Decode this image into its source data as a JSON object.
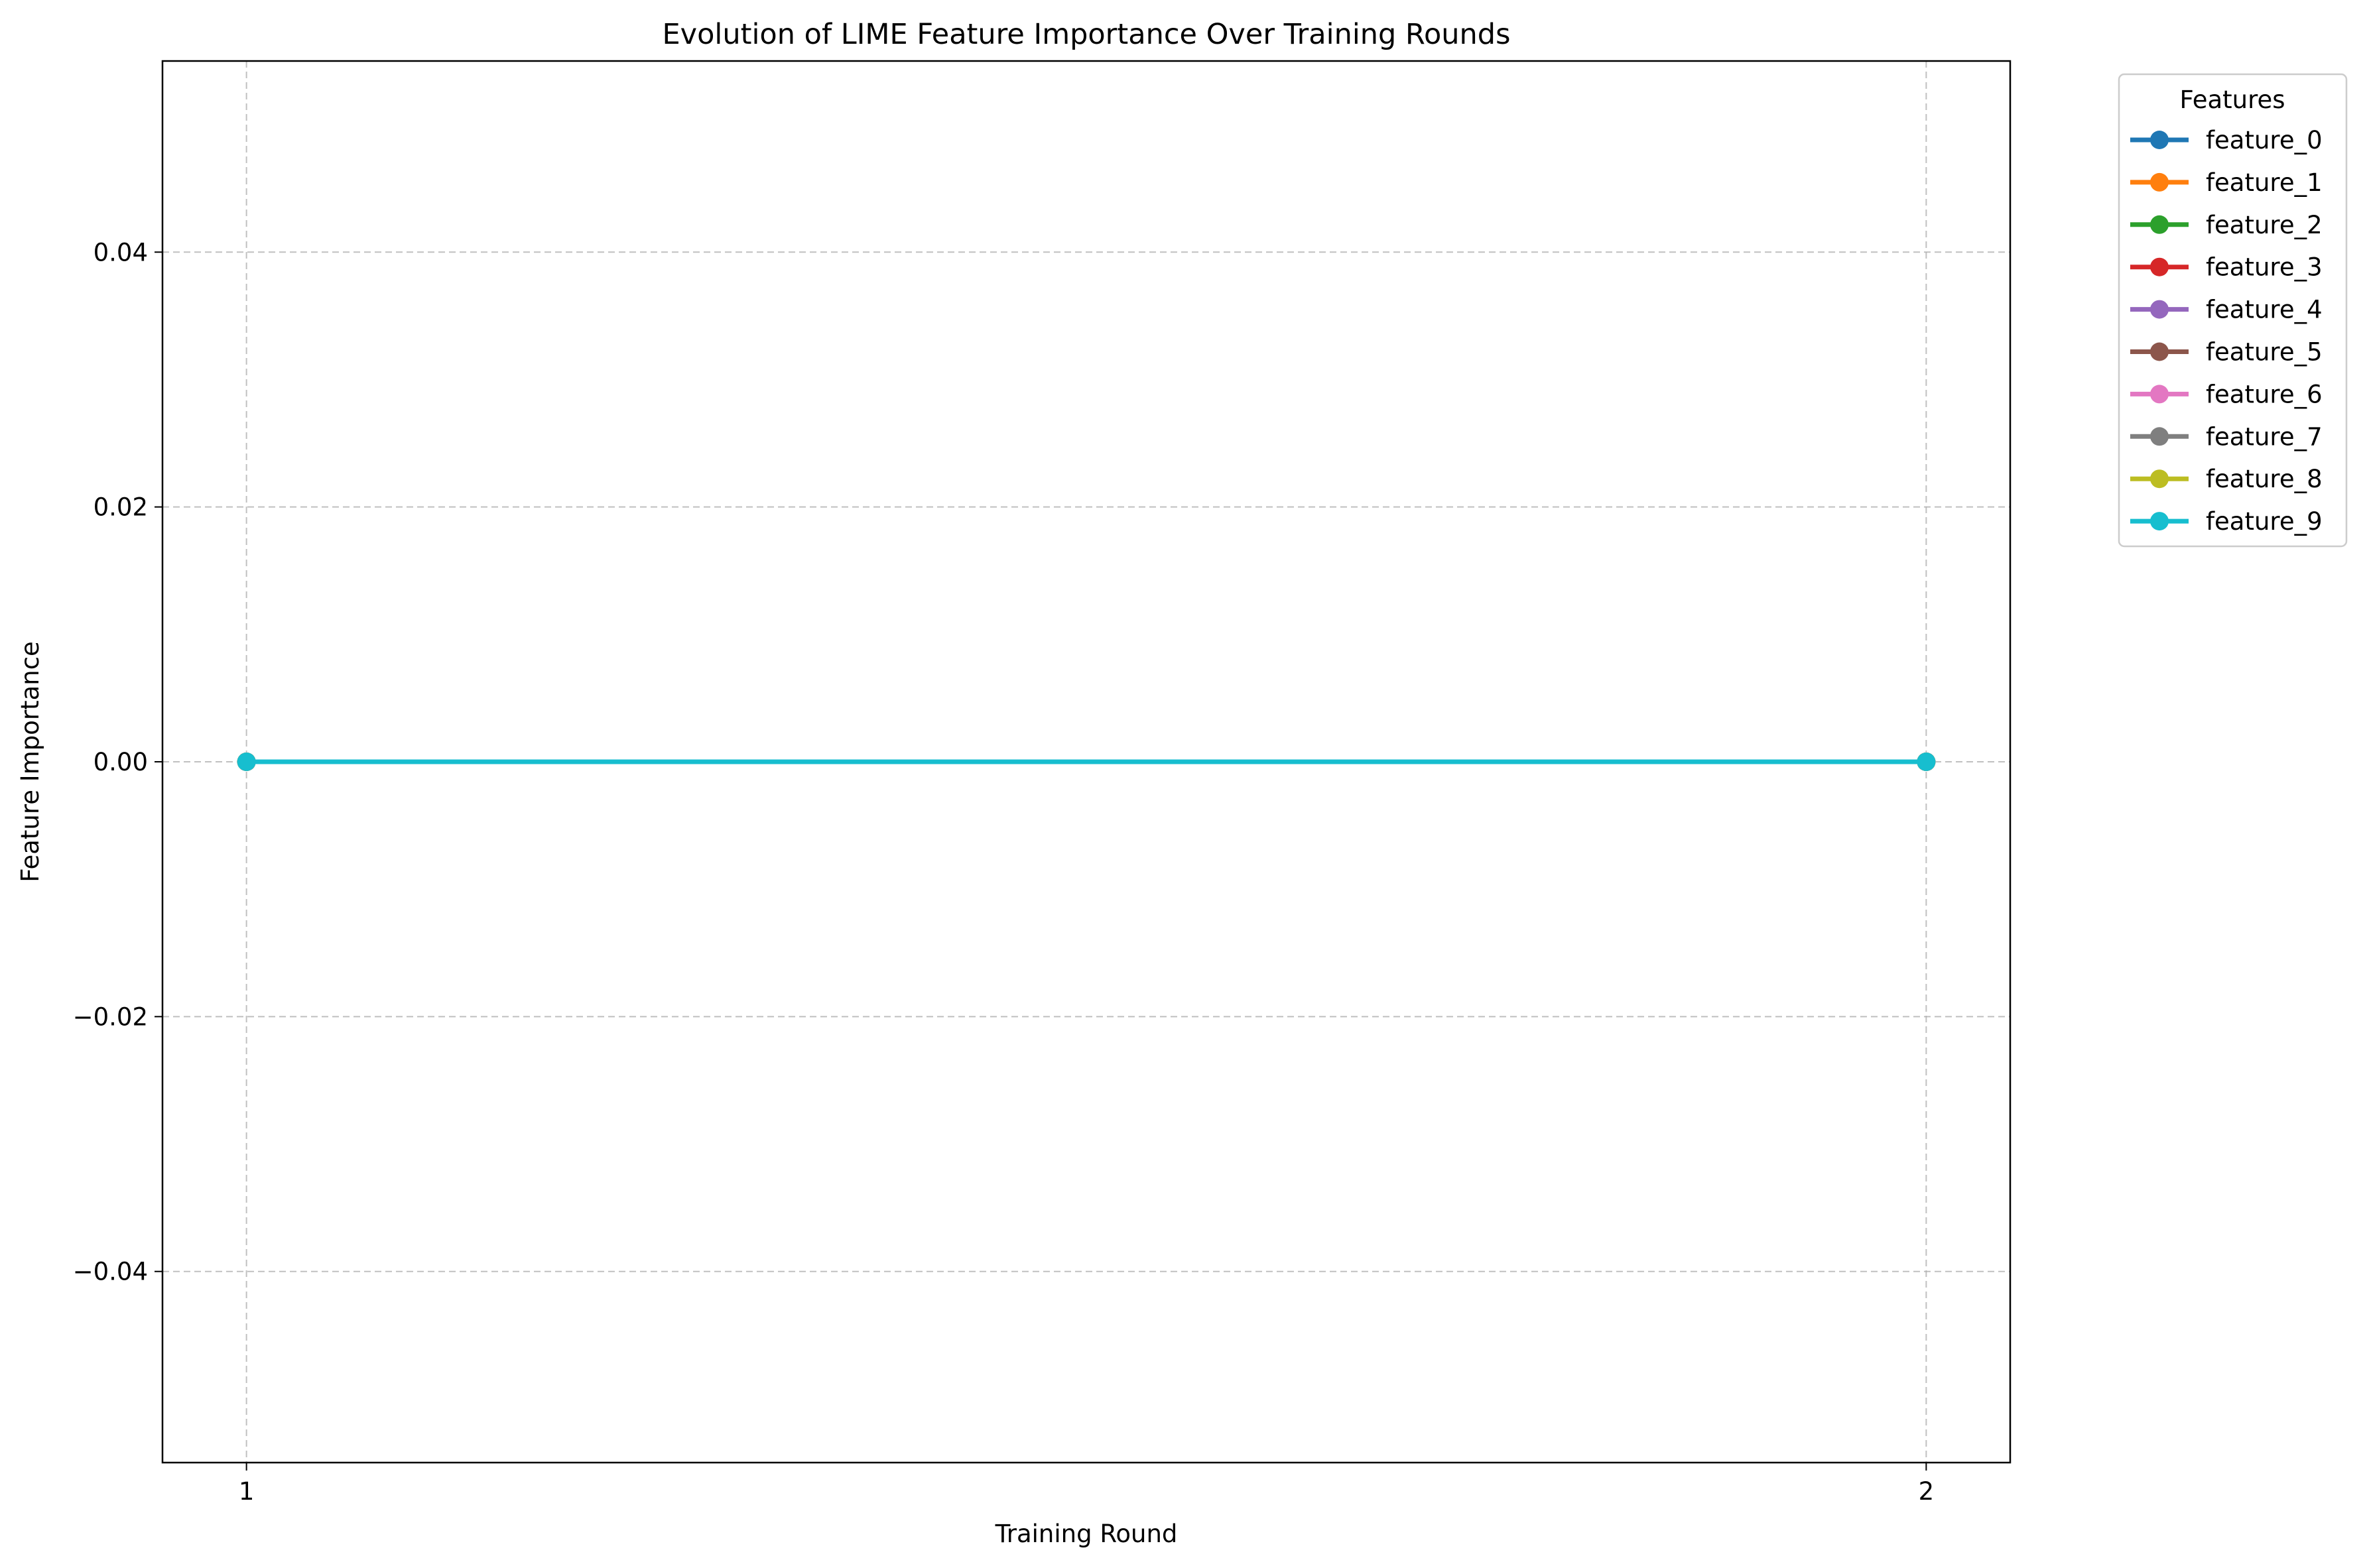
{
  "chart_data": {
    "type": "line",
    "title": "Evolution of LIME Feature Importance Over Training Rounds",
    "xlabel": "Training Round",
    "ylabel": "Feature Importance",
    "x": [
      1,
      2
    ],
    "x_ticks": [
      1,
      2
    ],
    "x_tick_labels": [
      "1",
      "2"
    ],
    "xlim": [
      0.95,
      2.05
    ],
    "ylim": [
      -0.055,
      0.055
    ],
    "y_ticks": [
      -0.04,
      -0.02,
      0.0,
      0.02,
      0.04
    ],
    "y_tick_labels": [
      "−0.04",
      "−0.02",
      "0.00",
      "0.02",
      "0.04"
    ],
    "grid": true,
    "legend": {
      "title": "Features",
      "placement": "outside-top-right"
    },
    "series": [
      {
        "name": "feature_0",
        "color": "#1f77b4",
        "values": [
          0.0,
          0.0
        ]
      },
      {
        "name": "feature_1",
        "color": "#ff7f0e",
        "values": [
          0.0,
          0.0
        ]
      },
      {
        "name": "feature_2",
        "color": "#2ca02c",
        "values": [
          0.0,
          0.0
        ]
      },
      {
        "name": "feature_3",
        "color": "#d62728",
        "values": [
          0.0,
          0.0
        ]
      },
      {
        "name": "feature_4",
        "color": "#9467bd",
        "values": [
          0.0,
          0.0
        ]
      },
      {
        "name": "feature_5",
        "color": "#8c564b",
        "values": [
          0.0,
          0.0
        ]
      },
      {
        "name": "feature_6",
        "color": "#e377c2",
        "values": [
          0.0,
          0.0
        ]
      },
      {
        "name": "feature_7",
        "color": "#7f7f7f",
        "values": [
          0.0,
          0.0
        ]
      },
      {
        "name": "feature_8",
        "color": "#bcbd22",
        "values": [
          0.0,
          0.0
        ]
      },
      {
        "name": "feature_9",
        "color": "#17becf",
        "values": [
          0.0,
          0.0
        ]
      }
    ]
  }
}
